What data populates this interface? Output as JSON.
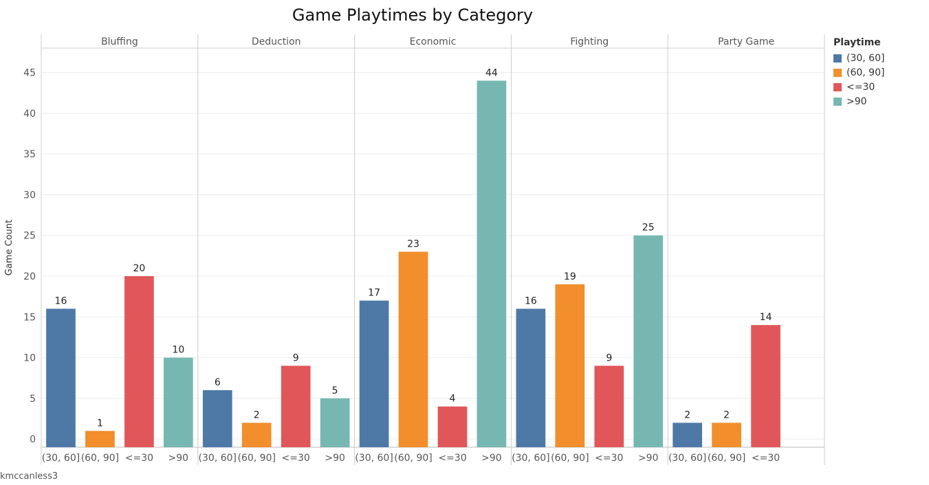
{
  "title": "Game Playtimes by Category",
  "author": "kmccanless3",
  "legend": {
    "title": "Playtime",
    "items": [
      {
        "label": "(30, 60]",
        "color": "#4e79a7"
      },
      {
        "label": "(60, 90]",
        "color": "#f28e2b"
      },
      {
        "label": "<=30",
        "color": "#e15759"
      },
      {
        "label": ">90",
        "color": "#76b7b2"
      }
    ]
  },
  "chart_data": {
    "type": "bar",
    "title": "Game Playtimes by Category",
    "xlabel": "",
    "ylabel": "Game Count",
    "ylim": [
      -1,
      48
    ],
    "yticks": [
      0,
      5,
      10,
      15,
      20,
      25,
      30,
      35,
      40,
      45
    ],
    "grid": true,
    "legend_position": "right",
    "panels": [
      {
        "category": "Bluffing",
        "bars": [
          {
            "label": "(30, 60]",
            "value": 16
          },
          {
            "label": "(60, 90]",
            "value": 1
          },
          {
            "label": "<=30",
            "value": 20
          },
          {
            "label": ">90",
            "value": 10
          }
        ]
      },
      {
        "category": "Deduction",
        "bars": [
          {
            "label": "(30, 60]",
            "value": 6
          },
          {
            "label": "(60, 90]",
            "value": 2
          },
          {
            "label": "<=30",
            "value": 9
          },
          {
            "label": ">90",
            "value": 5
          }
        ]
      },
      {
        "category": "Economic",
        "bars": [
          {
            "label": "(30, 60]",
            "value": 17
          },
          {
            "label": "(60, 90]",
            "value": 23
          },
          {
            "label": "<=30",
            "value": 4
          },
          {
            "label": ">90",
            "value": 44
          }
        ]
      },
      {
        "category": "Fighting",
        "bars": [
          {
            "label": "(30, 60]",
            "value": 16
          },
          {
            "label": "(60, 90]",
            "value": 19
          },
          {
            "label": "<=30",
            "value": 9
          },
          {
            "label": ">90",
            "value": 25
          }
        ]
      },
      {
        "category": "Party Game",
        "bars": [
          {
            "label": "(30, 60]",
            "value": 2
          },
          {
            "label": "(60, 90]",
            "value": 2
          },
          {
            "label": "<=30",
            "value": 14
          }
        ]
      }
    ]
  }
}
